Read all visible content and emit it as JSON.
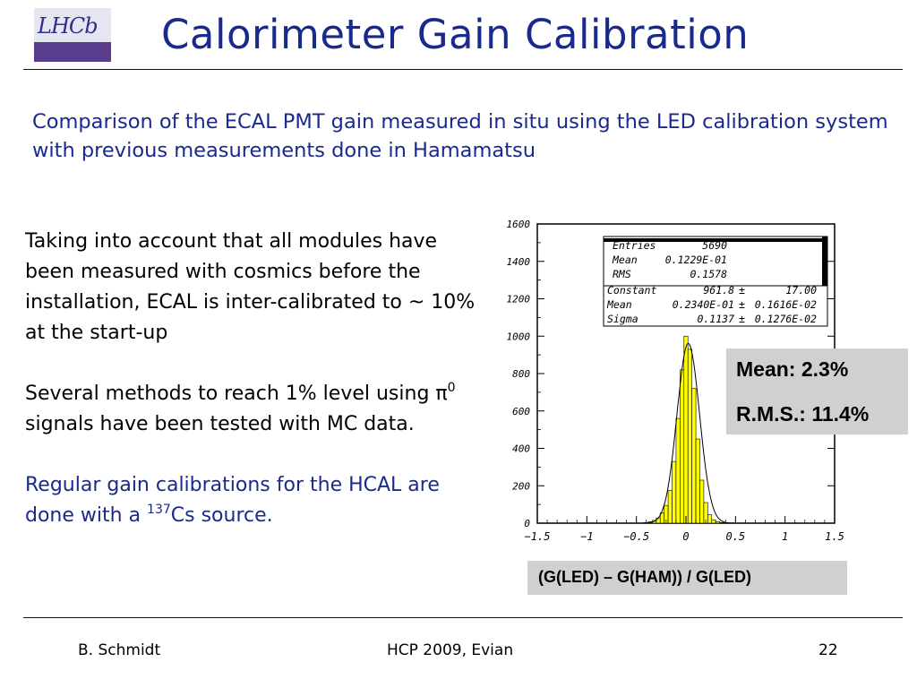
{
  "logo_text": "LHCb",
  "title": "Calorimeter Gain Calibration",
  "subtitle": "Comparison of the ECAL PMT gain measured in situ using the LED calibration system with previous measurements done in Hamamatsu",
  "body": {
    "para1": "Taking into account that all modules have been measured with cosmics before the installation, ECAL is inter-calibrated to ~ 10% at the start-up",
    "para2_pre": "Several methods to reach 1% level using π",
    "para2_sup": "0",
    "para2_post": " signals have been tested with MC data.",
    "para3_pre": "Regular gain calibrations for the HCAL are done with a ",
    "para3_sup": "137",
    "para3_post": "Cs source."
  },
  "summary": {
    "mean": "Mean: 2.3%",
    "rms": "R.M.S.: 11.4%"
  },
  "xlabel": "(G(LED) – G(HAM)) / G(LED)",
  "chart_data": {
    "type": "bar",
    "xlim": [
      -1.5,
      1.5
    ],
    "ylim": [
      0,
      1600
    ],
    "xticks": [
      "-1.5",
      "-1",
      "-0.5",
      "0",
      "0.5",
      "1",
      "1.5"
    ],
    "yticks": [
      "0",
      "200",
      "400",
      "600",
      "800",
      "1000",
      "1200",
      "1400",
      "1600"
    ],
    "fill_color": "#ffff00",
    "bins": [
      {
        "x": -0.4,
        "y": 3
      },
      {
        "x": -0.36,
        "y": 8
      },
      {
        "x": -0.32,
        "y": 15
      },
      {
        "x": -0.28,
        "y": 28
      },
      {
        "x": -0.24,
        "y": 55
      },
      {
        "x": -0.2,
        "y": 95
      },
      {
        "x": -0.16,
        "y": 175
      },
      {
        "x": -0.12,
        "y": 330
      },
      {
        "x": -0.08,
        "y": 560
      },
      {
        "x": -0.04,
        "y": 820
      },
      {
        "x": 0.0,
        "y": 1000
      },
      {
        "x": 0.04,
        "y": 930
      },
      {
        "x": 0.08,
        "y": 720
      },
      {
        "x": 0.12,
        "y": 450
      },
      {
        "x": 0.16,
        "y": 230
      },
      {
        "x": 0.2,
        "y": 110
      },
      {
        "x": 0.24,
        "y": 45
      },
      {
        "x": 0.28,
        "y": 18
      },
      {
        "x": 0.32,
        "y": 8
      },
      {
        "x": 0.36,
        "y": 3
      }
    ],
    "fit": {
      "constant": 961.8,
      "mean": 0.0234,
      "sigma": 0.1137
    },
    "stats": {
      "entries_label": "Entries",
      "entries_value": "5690",
      "mean_label": "Mean",
      "mean_value": "0.1229E-01",
      "rms_label": "RMS",
      "rms_value": "0.1578",
      "constant_label": "Constant",
      "constant_value": "961.8",
      "constant_err": "17.00",
      "fitmean_label": "Mean",
      "fitmean_value": "0.2340E-01",
      "fitmean_err": "0.1616E-02",
      "sigma_label": "Sigma",
      "sigma_value": "0.1137",
      "sigma_err": "0.1276E-02",
      "pm": "±"
    }
  },
  "footer": {
    "author": "B. Schmidt",
    "event": "HCP 2009,  Evian",
    "page": "22"
  }
}
